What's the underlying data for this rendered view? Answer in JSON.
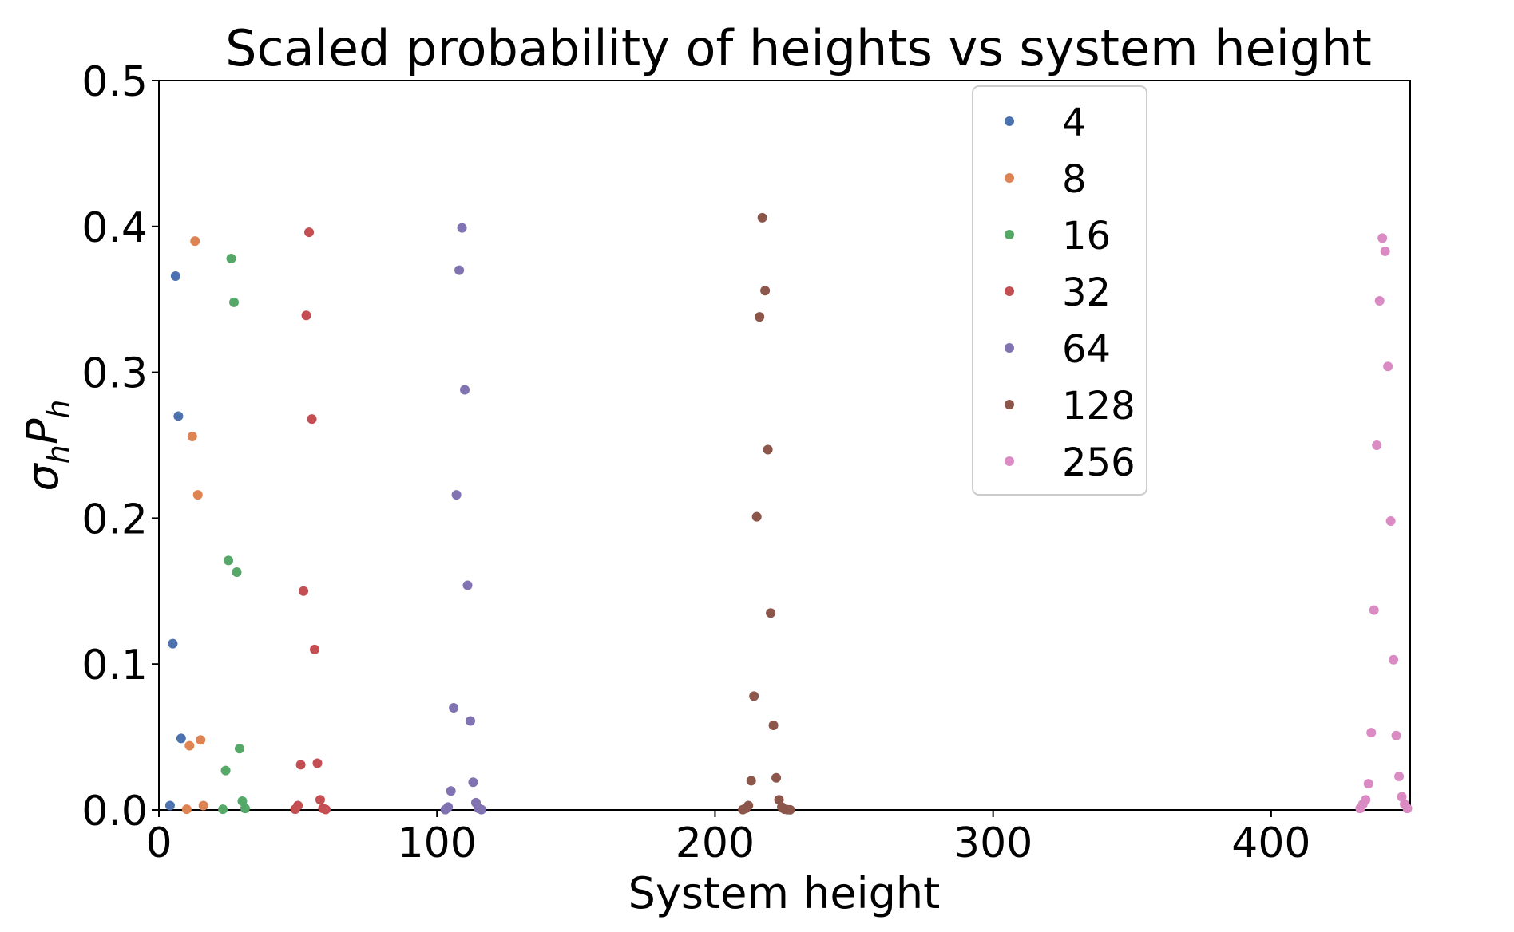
{
  "chart_data": {
    "type": "scatter",
    "title": "Scaled probability of heights vs system height",
    "xlabel": "System height",
    "ylabel_main": "σ",
    "ylabel_sub1": "h",
    "ylabel_mid": "P",
    "ylabel_sub2": "h",
    "xlim": [
      0,
      450
    ],
    "ylim": [
      0,
      0.5
    ],
    "xticks": [
      0,
      100,
      200,
      300,
      400
    ],
    "yticks": [
      0.0,
      0.1,
      0.2,
      0.3,
      0.4,
      0.5
    ],
    "xtick_labels": [
      "0",
      "100",
      "200",
      "300",
      "400"
    ],
    "ytick_labels": [
      "0.0",
      "0.1",
      "0.2",
      "0.3",
      "0.4",
      "0.5"
    ],
    "grid": false,
    "legend_position": "upper-center-right",
    "series": [
      {
        "name": "4",
        "color": "#4c72b0",
        "x": [
          4,
          5,
          6,
          7,
          8
        ],
        "y": [
          0.003,
          0.114,
          0.366,
          0.27,
          0.049
        ]
      },
      {
        "name": "8",
        "color": "#dd8452",
        "x": [
          10,
          11,
          12,
          13,
          14,
          15,
          16
        ],
        "y": [
          0.0005,
          0.044,
          0.256,
          0.39,
          0.216,
          0.048,
          0.003
        ]
      },
      {
        "name": "16",
        "color": "#55a868",
        "x": [
          23,
          24,
          25,
          26,
          27,
          28,
          29,
          30,
          31
        ],
        "y": [
          0.0005,
          0.027,
          0.171,
          0.378,
          0.348,
          0.163,
          0.042,
          0.006,
          0.001
        ]
      },
      {
        "name": "32",
        "color": "#c44e52",
        "x": [
          49,
          50,
          51,
          52,
          53,
          54,
          55,
          56,
          57,
          58,
          59,
          60
        ],
        "y": [
          0.0005,
          0.003,
          0.031,
          0.15,
          0.339,
          0.396,
          0.268,
          0.11,
          0.032,
          0.007,
          0.001,
          0.0003
        ]
      },
      {
        "name": "64",
        "color": "#8172b2",
        "x": [
          103,
          104,
          105,
          106,
          107,
          108,
          109,
          110,
          111,
          112,
          113,
          114,
          115,
          116
        ],
        "y": [
          0.0002,
          0.002,
          0.013,
          0.07,
          0.216,
          0.37,
          0.399,
          0.288,
          0.154,
          0.061,
          0.019,
          0.005,
          0.001,
          0.0002
        ]
      },
      {
        "name": "128",
        "color": "#8c564b",
        "x": [
          210,
          211,
          212,
          213,
          214,
          215,
          216,
          217,
          218,
          219,
          220,
          221,
          222,
          223,
          224,
          225,
          226,
          227
        ],
        "y": [
          0.0002,
          0.001,
          0.003,
          0.02,
          0.078,
          0.201,
          0.338,
          0.406,
          0.356,
          0.247,
          0.135,
          0.058,
          0.022,
          0.007,
          0.002,
          0.0005,
          0.0002,
          0.0001
        ]
      },
      {
        "name": "256",
        "color": "#da8bc3",
        "x": [
          432,
          433,
          434,
          435,
          436,
          437,
          438,
          439,
          440,
          441,
          442,
          443,
          444,
          445,
          446,
          447,
          448,
          449
        ],
        "y": [
          0.001,
          0.004,
          0.007,
          0.018,
          0.053,
          0.137,
          0.25,
          0.349,
          0.392,
          0.383,
          0.304,
          0.198,
          0.103,
          0.051,
          0.023,
          0.009,
          0.004,
          0.001
        ]
      }
    ]
  }
}
